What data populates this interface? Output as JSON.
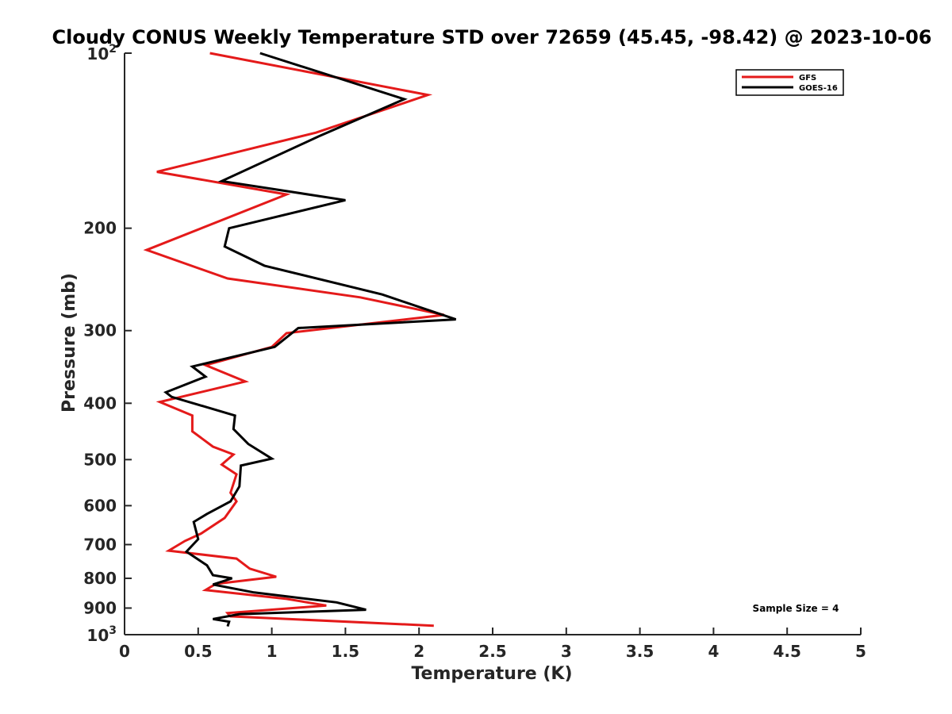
{
  "chart_data": {
    "type": "line",
    "title": "Cloudy CONUS Weekly Temperature STD over 72659 (45.45, -98.42) @ 2023-10-06",
    "xlabel": "Temperature (K)",
    "ylabel": "Pressure (mb)",
    "xlim": [
      0,
      5
    ],
    "ylim": [
      100,
      1000
    ],
    "y_scale": "log",
    "y_reversed": true,
    "x_ticks": [
      "0",
      "0.5",
      "1",
      "1.5",
      "2",
      "2.5",
      "3",
      "3.5",
      "4",
      "4.5",
      "5"
    ],
    "y_ticks": [
      {
        "value": 100,
        "label": "10",
        "exp": "2"
      },
      {
        "value": 200,
        "label": "200"
      },
      {
        "value": 300,
        "label": "300"
      },
      {
        "value": 400,
        "label": "400"
      },
      {
        "value": 500,
        "label": "500"
      },
      {
        "value": 600,
        "label": "600"
      },
      {
        "value": 700,
        "label": "700"
      },
      {
        "value": 800,
        "label": "800"
      },
      {
        "value": 900,
        "label": "900"
      },
      {
        "value": 1000,
        "label": "10",
        "exp": "3"
      }
    ],
    "grid": false,
    "legend_position": "top-right",
    "annotation": "Sample Size = 4",
    "series": [
      {
        "name": "GFS",
        "color": "#e41a1a",
        "x": [
          0.58,
          2.06,
          1.3,
          0.22,
          1.1,
          0.15,
          0.7,
          1.6,
          2.17,
          1.1,
          1.0,
          0.55,
          0.82,
          0.24,
          0.46,
          0.46,
          0.6,
          0.74,
          0.66,
          0.76,
          0.72,
          0.76,
          0.68,
          0.52,
          0.41,
          0.3,
          0.76,
          0.85,
          1.03,
          0.62,
          0.55,
          1.1,
          1.37,
          0.7,
          0.72,
          2.1
        ],
        "y": [
          100,
          118,
          137,
          160,
          175,
          218,
          244,
          263,
          282,
          303,
          320,
          344,
          367,
          398,
          420,
          447,
          475,
          490,
          510,
          530,
          570,
          590,
          630,
          670,
          690,
          717,
          740,
          770,
          795,
          818,
          838,
          868,
          891,
          918,
          930,
          965
        ]
      },
      {
        "name": "GOES-16",
        "color": "#000000",
        "x": [
          0.92,
          1.9,
          1.32,
          0.66,
          1.5,
          0.71,
          0.68,
          0.95,
          1.75,
          2.25,
          1.18,
          1.02,
          0.46,
          0.55,
          0.28,
          0.32,
          0.75,
          0.74,
          0.84,
          1.0,
          0.79,
          0.78,
          0.72,
          0.56,
          0.47,
          0.5,
          0.42,
          0.56,
          0.6,
          0.73,
          0.6,
          0.88,
          1.44,
          1.64,
          0.78,
          0.6,
          0.71,
          0.7
        ],
        "y": [
          100,
          120,
          139,
          166,
          179,
          200,
          215,
          232,
          260,
          287,
          297,
          320,
          346,
          360,
          383,
          390,
          420,
          443,
          470,
          498,
          512,
          556,
          590,
          620,
          640,
          685,
          720,
          760,
          790,
          800,
          820,
          846,
          880,
          906,
          922,
          940,
          950,
          968
        ]
      }
    ]
  }
}
